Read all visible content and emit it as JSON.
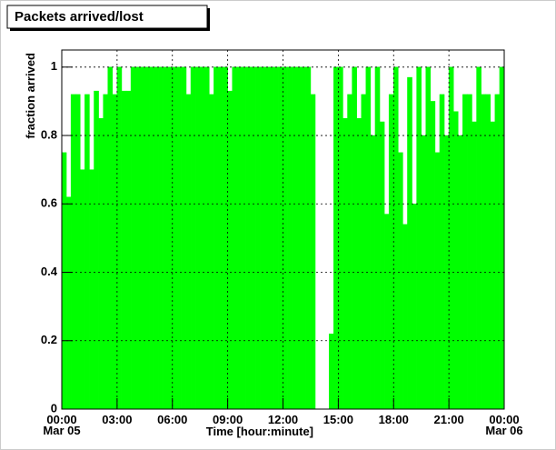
{
  "chart_data": {
    "type": "histogram",
    "title": "Packets arrived/lost",
    "x_label": "Time [hour:minute]",
    "y_label": "fraction arrived",
    "color": "#00ff00",
    "bins": [
      0,
      0.25,
      0.5,
      0.75,
      1,
      1.25,
      1.5,
      1.75,
      2,
      2.25,
      2.5,
      2.75,
      3,
      3.25,
      3.5,
      3.75,
      4,
      4.25,
      4.5,
      4.75,
      5,
      5.25,
      5.5,
      5.75,
      6,
      6.25,
      6.5,
      6.75,
      7,
      7.25,
      7.5,
      7.75,
      8,
      8.25,
      8.5,
      8.75,
      9,
      9.25,
      9.5,
      9.75,
      10,
      10.25,
      10.5,
      10.75,
      11,
      11.25,
      11.5,
      11.75,
      12,
      12.25,
      12.5,
      12.75,
      13,
      13.25,
      13.5,
      13.75,
      14,
      14.25,
      14.5,
      14.75,
      15,
      15.25,
      15.5,
      15.75,
      16,
      16.25,
      16.5,
      16.75,
      17,
      17.25,
      17.5,
      17.75,
      18,
      18.25,
      18.5,
      18.75,
      19,
      19.25,
      19.5,
      19.75,
      20,
      20.25,
      20.5,
      20.75,
      21,
      21.25,
      21.5,
      21.75,
      22,
      22.25,
      22.5,
      22.75,
      23,
      23.25,
      23.5,
      23.75,
      24
    ],
    "values": [
      0.75,
      0.62,
      0.92,
      0.92,
      0.7,
      0.92,
      0.7,
      0.93,
      0.85,
      0.92,
      1,
      0.92,
      1,
      0.93,
      0.93,
      1,
      1,
      1,
      1,
      1,
      1,
      1,
      1,
      1,
      1,
      1,
      1,
      0.92,
      1,
      1,
      1,
      1,
      0.92,
      1,
      1,
      1,
      0.93,
      1,
      1,
      1,
      1,
      1,
      1,
      1,
      1,
      1,
      1,
      1,
      1,
      1,
      1,
      1,
      1,
      1,
      0.92,
      0,
      0,
      0,
      0.22,
      1,
      1,
      0.85,
      0.92,
      1,
      0.85,
      0.92,
      1,
      0.8,
      1,
      0.84,
      0.57,
      0.92,
      1,
      0.75,
      0.54,
      0.97,
      0.6,
      1,
      0.8,
      1,
      0.9,
      0.75,
      0.92,
      0.8,
      1,
      0.87,
      0.8,
      0.92,
      0.92,
      0.84,
      1,
      0.92,
      0.92,
      0.84,
      0.92,
      1
    ],
    "xlim": [
      0,
      24
    ],
    "ylim": [
      0,
      1.05
    ],
    "xticks": [
      {
        "value": 0,
        "label": "00:00"
      },
      {
        "value": 3,
        "label": "03:00"
      },
      {
        "value": 6,
        "label": "06:00"
      },
      {
        "value": 9,
        "label": "09:00"
      },
      {
        "value": 12,
        "label": "12:00"
      },
      {
        "value": 15,
        "label": "15:00"
      },
      {
        "value": 18,
        "label": "18:00"
      },
      {
        "value": 21,
        "label": "21:00"
      },
      {
        "value": 24,
        "label": "00:00"
      }
    ],
    "date_labels": [
      {
        "value": 0,
        "label": "Mar 05"
      },
      {
        "value": 24,
        "label": "Mar 06"
      }
    ],
    "yticks": [
      0,
      0.2,
      0.4,
      0.6,
      0.8,
      1
    ],
    "grid": true
  }
}
